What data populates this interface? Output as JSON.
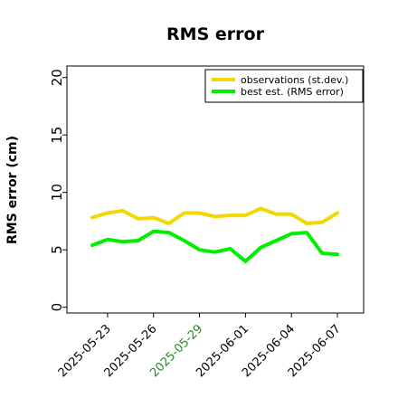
{
  "chart_data": {
    "type": "line",
    "title": "RMS error",
    "xlabel": "",
    "ylabel": "RMS error (cm)",
    "ylim": [
      -0.5,
      21
    ],
    "yticks": [
      0,
      5,
      10,
      15,
      20
    ],
    "x": [
      "2025-05-22",
      "2025-05-23",
      "2025-05-24",
      "2025-05-25",
      "2025-05-26",
      "2025-05-27",
      "2025-05-28",
      "2025-05-29",
      "2025-05-30",
      "2025-05-31",
      "2025-06-01",
      "2025-06-02",
      "2025-06-03",
      "2025-06-04",
      "2025-06-05",
      "2025-06-06",
      "2025-06-07"
    ],
    "xticks": [
      {
        "label": "2025-05-23",
        "color": "#000000"
      },
      {
        "label": "2025-05-26",
        "color": "#000000"
      },
      {
        "label": "2025-05-29",
        "color": "#228b22"
      },
      {
        "label": "2025-06-01",
        "color": "#000000"
      },
      {
        "label": "2025-06-04",
        "color": "#000000"
      },
      {
        "label": "2025-06-07",
        "color": "#000000"
      }
    ],
    "series": [
      {
        "name": "observations (st.dev.)",
        "color": "#f0d800",
        "values": [
          7.8,
          8.2,
          8.4,
          7.7,
          7.8,
          7.3,
          8.2,
          8.2,
          7.9,
          8.0,
          8.0,
          8.6,
          8.1,
          8.1,
          7.3,
          7.4,
          8.2
        ]
      },
      {
        "name": "best est. (RMS error)",
        "color": "#00ee00",
        "values": [
          5.4,
          5.9,
          5.7,
          5.8,
          6.6,
          6.5,
          5.8,
          5.0,
          4.8,
          5.1,
          4.0,
          5.2,
          5.8,
          6.4,
          6.5,
          4.7,
          4.6
        ]
      }
    ],
    "grid": false,
    "legend_position": "top-right"
  }
}
